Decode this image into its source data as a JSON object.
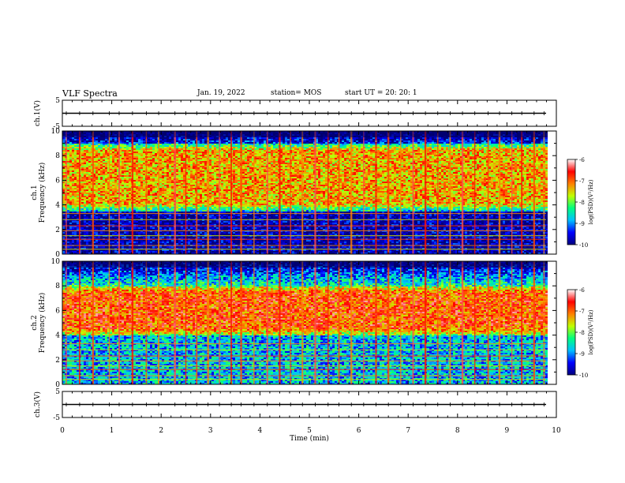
{
  "header": {
    "title": "VLF Spectra",
    "date": "Jan. 19, 2022",
    "station": "station= MOS",
    "start": "start  UT  =   20: 20: 1"
  },
  "chart_data": {
    "type": "heatmap",
    "title": "VLF Spectra",
    "xlabel": "Time  (min)",
    "xlim": [
      0,
      10
    ],
    "x_ticks": [
      "0",
      "1",
      "2",
      "3",
      "4",
      "5",
      "6",
      "7",
      "8",
      "9",
      "10"
    ],
    "panels": [
      {
        "name": "ch1-voltage",
        "type": "line",
        "ylabel": "ch.1(V)",
        "ylim": [
          -5,
          5
        ],
        "y_ticks": [
          "5",
          "-5"
        ],
        "level": 0
      },
      {
        "name": "ch1-spectrogram",
        "type": "heatmap",
        "ylabel": "ch.1\nFrequency (kHz)",
        "ylim": [
          0,
          10
        ],
        "y_ticks": [
          "0",
          "2",
          "4",
          "6",
          "8",
          "10"
        ],
        "band_low": 3.5,
        "band_high": 9.0,
        "band_intensity": -7.3,
        "background_intensity": -9.4
      },
      {
        "name": "ch2-spectrogram",
        "type": "heatmap",
        "ylabel": "ch.2\nFrequency (kHz)",
        "ylim": [
          0,
          10
        ],
        "y_ticks": [
          "0",
          "2",
          "4",
          "6",
          "8",
          "10"
        ],
        "band_low": 4.0,
        "band_high": 8.0,
        "band_intensity": -6.9,
        "background_intensity": -8.4
      },
      {
        "name": "ch3-voltage",
        "type": "line",
        "ylabel": "ch.3(V)",
        "ylim": [
          -5,
          5
        ],
        "y_ticks": [
          "5",
          "-5"
        ],
        "level": 0
      }
    ],
    "colorbar": {
      "label": "log(PSD)(V²/Hz)",
      "range": [
        -10,
        -6
      ],
      "ticks": [
        "-6",
        "-7",
        "-8",
        "-9",
        "-10"
      ],
      "colormap": [
        "#000080",
        "#0000ff",
        "#00c0ff",
        "#00ff80",
        "#c0ff00",
        "#ff8000",
        "#ff0000",
        "#ffffff"
      ]
    },
    "sferic_times_min": [
      0.08,
      0.35,
      0.62,
      0.95,
      1.15,
      1.42,
      1.7,
      1.95,
      2.28,
      2.5,
      2.72,
      2.95,
      3.18,
      3.42,
      3.62,
      3.88,
      4.15,
      4.4,
      4.62,
      4.86,
      5.12,
      5.38,
      5.6,
      5.85,
      6.1,
      6.35,
      6.6,
      6.85,
      7.1,
      7.35,
      7.6,
      7.85,
      8.1,
      8.35,
      8.62,
      8.85,
      9.1,
      9.3,
      9.55,
      9.75
    ],
    "narrowband_lines_khz": [
      0.4,
      0.7,
      1.2,
      1.5,
      1.9,
      2.3,
      2.8,
      3.3
    ]
  }
}
